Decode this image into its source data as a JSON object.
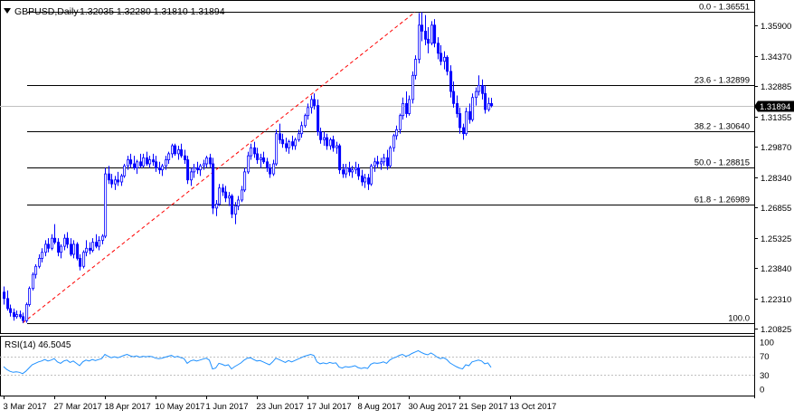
{
  "chart_data": {
    "type": "candlestick",
    "title": {
      "symbol_label": "GBPUSD,Daily",
      "ohlc_values": "1.32035 1.32280 1.31810 1.31894"
    },
    "colors": {
      "up_candle": "#0000ff",
      "down_candle": "#0000ff",
      "fib_lines": "#000000",
      "trend_line": "#ff0000",
      "rsi_line": "#1e90ff",
      "rsi_levels": "#c0c0c0",
      "price_marker_bg": "#000000",
      "price_marker_text": "#ffffff"
    },
    "price_axis": {
      "ylim": [
        1.2058,
        1.3715
      ],
      "ticks": [
        "1.35900",
        "1.34370",
        "1.32885",
        "1.31355",
        "1.29870",
        "1.28340",
        "1.26855",
        "1.25325",
        "1.23840",
        "1.22310",
        "1.20825"
      ],
      "current_price": 1.31894,
      "current_price_label": "1.31894"
    },
    "fibonacci_levels": [
      {
        "level": "0.0",
        "price": 1.36551,
        "label": "0.0 - 1.36551"
      },
      {
        "level": "23.6",
        "price": 1.32899,
        "label": "23.6 - 1.32899"
      },
      {
        "level": "38.2",
        "price": 1.3064,
        "label": "38.2 - 1.30640"
      },
      {
        "level": "50.0",
        "price": 1.28815,
        "label": "50.0 - 1.28815"
      },
      {
        "level": "61.8",
        "price": 1.26989,
        "label": "61.8 - 1.26989"
      },
      {
        "level": "100.0",
        "price": 1.2108,
        "label": "100.0"
      }
    ],
    "trend_line": {
      "from_date": "13 Mar 2017",
      "from_price": 1.2108,
      "to_date": "08 Sep 2017",
      "to_price": 1.36551
    },
    "x_axis": {
      "labels": [
        "3 Mar 2017",
        "27 Mar 2017",
        "18 Apr 2017",
        "10 May 2017",
        "1 Jun 2017",
        "23 Jun 2017",
        "17 Jul 2017",
        "8 Aug 2017",
        "30 Aug 2017",
        "21 Sep 2017",
        "13 Oct 2017"
      ],
      "label_bar_index": [
        0,
        16,
        32,
        48,
        64,
        80,
        96,
        112,
        128,
        144,
        160
      ]
    },
    "candles": [
      [
        1.2262,
        1.229,
        1.22,
        1.223
      ],
      [
        1.223,
        1.227,
        1.217,
        1.218
      ],
      [
        1.218,
        1.22,
        1.214,
        1.216
      ],
      [
        1.216,
        1.218,
        1.212,
        1.214
      ],
      [
        1.214,
        1.217,
        1.213,
        1.215
      ],
      [
        1.215,
        1.217,
        1.213,
        1.214
      ],
      [
        1.214,
        1.216,
        1.2108,
        1.212
      ],
      [
        1.212,
        1.221,
        1.211,
        1.22
      ],
      [
        1.22,
        1.229,
        1.219,
        1.228
      ],
      [
        1.228,
        1.236,
        1.227,
        1.235
      ],
      [
        1.235,
        1.24,
        1.233,
        1.239
      ],
      [
        1.239,
        1.245,
        1.238,
        1.243
      ],
      [
        1.243,
        1.248,
        1.241,
        1.246
      ],
      [
        1.246,
        1.252,
        1.244,
        1.25
      ],
      [
        1.25,
        1.253,
        1.246,
        1.248
      ],
      [
        1.248,
        1.255,
        1.247,
        1.253
      ],
      [
        1.253,
        1.26,
        1.25,
        1.251
      ],
      [
        1.251,
        1.253,
        1.244,
        1.246
      ],
      [
        1.246,
        1.25,
        1.243,
        1.249
      ],
      [
        1.249,
        1.255,
        1.247,
        1.253
      ],
      [
        1.253,
        1.256,
        1.248,
        1.25
      ],
      [
        1.25,
        1.253,
        1.244,
        1.245
      ],
      [
        1.245,
        1.252,
        1.243,
        1.25
      ],
      [
        1.25,
        1.251,
        1.242,
        1.243
      ],
      [
        1.243,
        1.245,
        1.237,
        1.239
      ],
      [
        1.239,
        1.247,
        1.238,
        1.246
      ],
      [
        1.246,
        1.252,
        1.244,
        1.248
      ],
      [
        1.248,
        1.251,
        1.245,
        1.247
      ],
      [
        1.247,
        1.253,
        1.246,
        1.251
      ],
      [
        1.251,
        1.255,
        1.248,
        1.249
      ],
      [
        1.249,
        1.254,
        1.247,
        1.252
      ],
      [
        1.252,
        1.255,
        1.25,
        1.254
      ],
      [
        1.254,
        1.288,
        1.253,
        1.285
      ],
      [
        1.285,
        1.289,
        1.28,
        1.282
      ],
      [
        1.282,
        1.285,
        1.278,
        1.28
      ],
      [
        1.28,
        1.284,
        1.277,
        1.282
      ],
      [
        1.282,
        1.286,
        1.279,
        1.281
      ],
      [
        1.281,
        1.285,
        1.279,
        1.284
      ],
      [
        1.284,
        1.29,
        1.283,
        1.289
      ],
      [
        1.289,
        1.294,
        1.287,
        1.292
      ],
      [
        1.292,
        1.295,
        1.288,
        1.29
      ],
      [
        1.29,
        1.294,
        1.287,
        1.288
      ],
      [
        1.288,
        1.292,
        1.285,
        1.291
      ],
      [
        1.291,
        1.295,
        1.288,
        1.289
      ],
      [
        1.289,
        1.295,
        1.288,
        1.293
      ],
      [
        1.293,
        1.296,
        1.289,
        1.29
      ],
      [
        1.29,
        1.294,
        1.288,
        1.292
      ],
      [
        1.292,
        1.295,
        1.289,
        1.291
      ],
      [
        1.291,
        1.294,
        1.286,
        1.288
      ],
      [
        1.288,
        1.291,
        1.285,
        1.287
      ],
      [
        1.287,
        1.29,
        1.284,
        1.289
      ],
      [
        1.289,
        1.294,
        1.287,
        1.292
      ],
      [
        1.292,
        1.296,
        1.29,
        1.295
      ],
      [
        1.295,
        1.3,
        1.293,
        1.299
      ],
      [
        1.299,
        1.3,
        1.294,
        1.295
      ],
      [
        1.295,
        1.299,
        1.292,
        1.297
      ],
      [
        1.297,
        1.3,
        1.293,
        1.294
      ],
      [
        1.294,
        1.297,
        1.29,
        1.292
      ],
      [
        1.292,
        1.294,
        1.28,
        1.282
      ],
      [
        1.282,
        1.288,
        1.279,
        1.286
      ],
      [
        1.286,
        1.29,
        1.283,
        1.288
      ],
      [
        1.288,
        1.291,
        1.285,
        1.287
      ],
      [
        1.287,
        1.29,
        1.284,
        1.289
      ],
      [
        1.289,
        1.292,
        1.287,
        1.29
      ],
      [
        1.29,
        1.294,
        1.288,
        1.293
      ],
      [
        1.293,
        1.295,
        1.288,
        1.29
      ],
      [
        1.29,
        1.293,
        1.265,
        1.268
      ],
      [
        1.268,
        1.272,
        1.264,
        1.27
      ],
      [
        1.27,
        1.28,
        1.269,
        1.278
      ],
      [
        1.278,
        1.28,
        1.274,
        1.276
      ],
      [
        1.276,
        1.279,
        1.271,
        1.273
      ],
      [
        1.273,
        1.276,
        1.269,
        1.274
      ],
      [
        1.274,
        1.275,
        1.263,
        1.265
      ],
      [
        1.265,
        1.271,
        1.26,
        1.269
      ],
      [
        1.269,
        1.274,
        1.267,
        1.272
      ],
      [
        1.272,
        1.279,
        1.271,
        1.277
      ],
      [
        1.277,
        1.288,
        1.276,
        1.286
      ],
      [
        1.286,
        1.296,
        1.285,
        1.294
      ],
      [
        1.294,
        1.3,
        1.292,
        1.298
      ],
      [
        1.298,
        1.301,
        1.293,
        1.295
      ],
      [
        1.295,
        1.298,
        1.29,
        1.292
      ],
      [
        1.292,
        1.295,
        1.288,
        1.293
      ],
      [
        1.293,
        1.296,
        1.29,
        1.291
      ],
      [
        1.291,
        1.293,
        1.286,
        1.288
      ],
      [
        1.288,
        1.29,
        1.283,
        1.285
      ],
      [
        1.285,
        1.292,
        1.284,
        1.29
      ],
      [
        1.29,
        1.307,
        1.289,
        1.305
      ],
      [
        1.305,
        1.31,
        1.3,
        1.302
      ],
      [
        1.302,
        1.305,
        1.298,
        1.3
      ],
      [
        1.3,
        1.303,
        1.296,
        1.298
      ],
      [
        1.298,
        1.302,
        1.295,
        1.301
      ],
      [
        1.301,
        1.304,
        1.297,
        1.299
      ],
      [
        1.299,
        1.303,
        1.297,
        1.302
      ],
      [
        1.302,
        1.307,
        1.301,
        1.305
      ],
      [
        1.305,
        1.311,
        1.303,
        1.309
      ],
      [
        1.309,
        1.315,
        1.308,
        1.314
      ],
      [
        1.314,
        1.32,
        1.312,
        1.318
      ],
      [
        1.318,
        1.324,
        1.315,
        1.322
      ],
      [
        1.322,
        1.325,
        1.317,
        1.319
      ],
      [
        1.319,
        1.322,
        1.304,
        1.306
      ],
      [
        1.306,
        1.308,
        1.3,
        1.302
      ],
      [
        1.302,
        1.306,
        1.299,
        1.303
      ],
      [
        1.303,
        1.305,
        1.297,
        1.299
      ],
      [
        1.299,
        1.303,
        1.297,
        1.302
      ],
      [
        1.302,
        1.304,
        1.296,
        1.298
      ],
      [
        1.298,
        1.301,
        1.295,
        1.299
      ],
      [
        1.299,
        1.3,
        1.285,
        1.287
      ],
      [
        1.287,
        1.29,
        1.283,
        1.285
      ],
      [
        1.285,
        1.29,
        1.283,
        1.288
      ],
      [
        1.288,
        1.291,
        1.284,
        1.286
      ],
      [
        1.286,
        1.289,
        1.283,
        1.287
      ],
      [
        1.287,
        1.291,
        1.285,
        1.288
      ],
      [
        1.288,
        1.29,
        1.282,
        1.284
      ],
      [
        1.284,
        1.287,
        1.279,
        1.281
      ],
      [
        1.281,
        1.285,
        1.278,
        1.283
      ],
      [
        1.283,
        1.285,
        1.277,
        1.28
      ],
      [
        1.28,
        1.29,
        1.279,
        1.289
      ],
      [
        1.289,
        1.293,
        1.286,
        1.291
      ],
      [
        1.291,
        1.294,
        1.288,
        1.29
      ],
      [
        1.29,
        1.293,
        1.287,
        1.291
      ],
      [
        1.291,
        1.295,
        1.289,
        1.293
      ],
      [
        1.293,
        1.297,
        1.287,
        1.289
      ],
      [
        1.289,
        1.299,
        1.288,
        1.298
      ],
      [
        1.298,
        1.305,
        1.296,
        1.304
      ],
      [
        1.304,
        1.309,
        1.302,
        1.307
      ],
      [
        1.307,
        1.315,
        1.305,
        1.314
      ],
      [
        1.314,
        1.323,
        1.312,
        1.32
      ],
      [
        1.32,
        1.326,
        1.313,
        1.315
      ],
      [
        1.315,
        1.324,
        1.314,
        1.322
      ],
      [
        1.322,
        1.336,
        1.32,
        1.334
      ],
      [
        1.334,
        1.344,
        1.332,
        1.342
      ],
      [
        1.342,
        1.365,
        1.34,
        1.359
      ],
      [
        1.359,
        1.3655,
        1.351,
        1.356
      ],
      [
        1.356,
        1.364,
        1.349,
        1.352
      ],
      [
        1.352,
        1.358,
        1.345,
        1.35
      ],
      [
        1.35,
        1.361,
        1.349,
        1.359
      ],
      [
        1.359,
        1.362,
        1.348,
        1.35
      ],
      [
        1.35,
        1.353,
        1.342,
        1.345
      ],
      [
        1.345,
        1.349,
        1.339,
        1.341
      ],
      [
        1.341,
        1.346,
        1.337,
        1.343
      ],
      [
        1.343,
        1.344,
        1.334,
        1.336
      ],
      [
        1.336,
        1.339,
        1.323,
        1.326
      ],
      [
        1.326,
        1.331,
        1.318,
        1.32
      ],
      [
        1.32,
        1.324,
        1.313,
        1.315
      ],
      [
        1.315,
        1.318,
        1.305,
        1.308
      ],
      [
        1.308,
        1.31,
        1.302,
        1.305
      ],
      [
        1.305,
        1.318,
        1.304,
        1.316
      ],
      [
        1.316,
        1.32,
        1.31,
        1.312
      ],
      [
        1.312,
        1.325,
        1.311,
        1.323
      ],
      [
        1.323,
        1.328,
        1.319,
        1.326
      ],
      [
        1.326,
        1.334,
        1.324,
        1.329
      ],
      [
        1.329,
        1.332,
        1.322,
        1.325
      ],
      [
        1.325,
        1.329,
        1.315,
        1.317
      ],
      [
        1.317,
        1.323,
        1.316,
        1.32
      ],
      [
        1.32,
        1.3228,
        1.3181,
        1.31894
      ]
    ],
    "rsi": {
      "label": "RSI(14) 46.5045",
      "axis_labels": [
        "100",
        "70",
        "30",
        "0"
      ],
      "levels": [
        70,
        30
      ],
      "values": [
        48,
        42,
        38,
        36,
        37,
        36,
        33,
        38,
        45,
        52,
        55,
        58,
        60,
        63,
        60,
        62,
        65,
        58,
        55,
        60,
        62,
        57,
        60,
        55,
        50,
        58,
        62,
        60,
        63,
        61,
        63,
        65,
        74,
        70,
        67,
        69,
        67,
        69,
        72,
        74,
        71,
        69,
        71,
        68,
        70,
        69,
        70,
        69,
        66,
        65,
        66,
        68,
        70,
        72,
        68,
        70,
        67,
        65,
        55,
        60,
        62,
        60,
        62,
        64,
        66,
        62,
        43,
        45,
        55,
        53,
        50,
        52,
        43,
        48,
        52,
        56,
        62,
        66,
        67,
        63,
        60,
        61,
        58,
        55,
        52,
        58,
        66,
        63,
        60,
        57,
        61,
        58,
        61,
        64,
        67,
        70,
        72,
        74,
        72,
        58,
        54,
        56,
        54,
        57,
        55,
        56,
        47,
        45,
        48,
        47,
        48,
        50,
        46,
        44,
        46,
        44,
        53,
        56,
        55,
        56,
        58,
        55,
        62,
        66,
        68,
        72,
        74,
        70,
        72,
        76,
        79,
        82,
        78,
        75,
        73,
        77,
        73,
        68,
        65,
        67,
        63,
        56,
        52,
        48,
        45,
        43,
        52,
        50,
        58,
        60,
        62,
        60,
        54,
        56,
        46.5
      ]
    }
  }
}
